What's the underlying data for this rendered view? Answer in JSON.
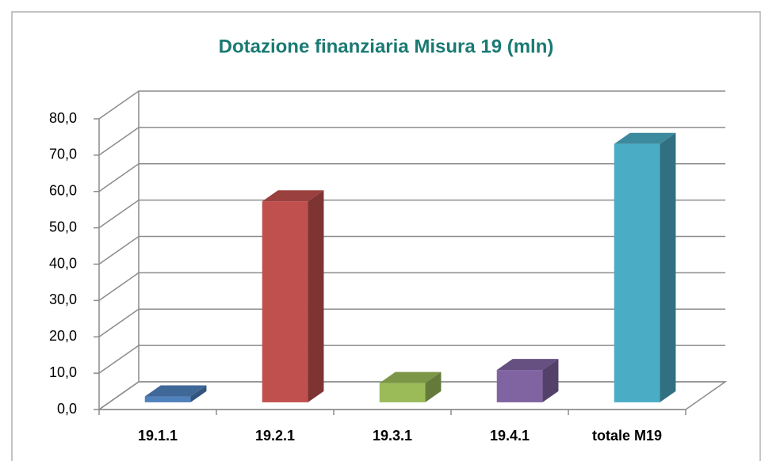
{
  "chart_data": {
    "type": "bar3d",
    "title": "Dotazione finanziaria Misura 19 (mln)",
    "categories": [
      "19.1.1",
      "19.2.1",
      "19.3.1",
      "19.4.1",
      "totale M19"
    ],
    "values": [
      1.6,
      55.3,
      5.3,
      8.9,
      71.1
    ],
    "colors": [
      "#4f81bd",
      "#c0504d",
      "#9bbb59",
      "#8064a2",
      "#4bacc6"
    ],
    "ylim": [
      0,
      80
    ],
    "yticks": [
      {
        "value": 0,
        "label": "0,0"
      },
      {
        "value": 10,
        "label": "10,0"
      },
      {
        "value": 20,
        "label": "20,0"
      },
      {
        "value": 30,
        "label": "30,0"
      },
      {
        "value": 40,
        "label": "40,0"
      },
      {
        "value": 50,
        "label": "50,0"
      },
      {
        "value": 60,
        "label": "60,0"
      },
      {
        "value": 70,
        "label": "70,0"
      },
      {
        "value": 80,
        "label": "80,0"
      }
    ],
    "grid": true
  }
}
